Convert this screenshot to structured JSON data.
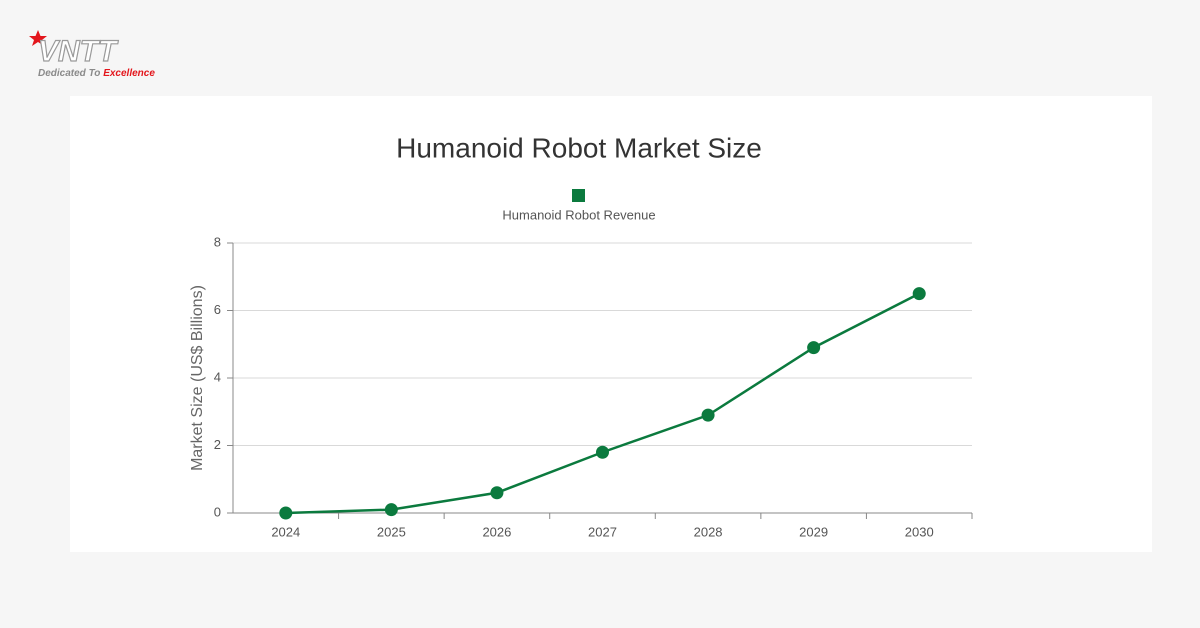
{
  "logo": {
    "name": "VNTT",
    "tagline": "Dedicated To",
    "tagline_accent": "Excellence"
  },
  "chart_data": {
    "type": "line",
    "title": "Humanoid Robot Market Size",
    "categories": [
      "2024",
      "2025",
      "2026",
      "2027",
      "2028",
      "2029",
      "2030"
    ],
    "series": [
      {
        "name": "Humanoid Robot Revenue",
        "color": "#0b7a3e",
        "values": [
          0,
          0.1,
          0.6,
          1.8,
          2.9,
          4.9,
          6.5
        ]
      }
    ],
    "ylabel": "Market Size (US$ Billions)",
    "ylim": [
      0,
      8
    ],
    "yticks": [
      0,
      2,
      4,
      6,
      8
    ],
    "grid": true,
    "legend": "top"
  }
}
